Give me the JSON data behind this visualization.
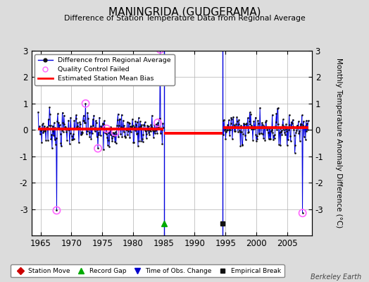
{
  "title": "MANINGRIDA (GUDGERAMA)",
  "subtitle": "Difference of Station Temperature Data from Regional Average",
  "ylabel": "Monthly Temperature Anomaly Difference (°C)",
  "xlabel_years": [
    1965,
    1970,
    1975,
    1980,
    1985,
    1990,
    1995,
    2000,
    2005
  ],
  "ylim": [
    -4,
    3
  ],
  "xlim": [
    1963.5,
    2009.0
  ],
  "yticks_left": [
    -3,
    -2,
    -1,
    0,
    1,
    2,
    3
  ],
  "yticks_right": [
    -3,
    -2,
    -1,
    0,
    1,
    2,
    3
  ],
  "background_color": "#dcdcdc",
  "plot_bg_color": "#ffffff",
  "watermark": "Berkeley Earth",
  "gap_start": 1985.0,
  "gap_end": 1994.5,
  "segment1_start": 1964.5,
  "segment1_end": 1985.0,
  "segment2_start": 1994.5,
  "segment2_end": 2008.5,
  "bias1": 0.03,
  "bias2": -0.13,
  "bias3": 0.08,
  "record_gap_x": 1985.0,
  "empirical_break_x": 1994.5,
  "grid_color": "#b0b0b0",
  "line_color": "#0000dd",
  "bias_color": "#ff0000",
  "qc_color": "#ff66ff",
  "marker_color": "#111111",
  "seed": 7
}
